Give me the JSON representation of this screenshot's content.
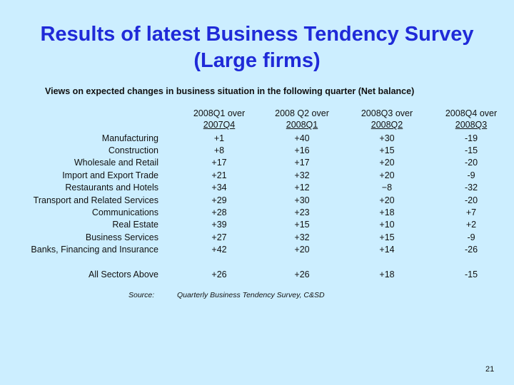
{
  "title": {
    "line1": "Results of latest Business Tendency Survey",
    "line2": "(Large firms)"
  },
  "subtitle": "Views on expected changes in business situation in the following quarter (Net balance)",
  "columns": [
    {
      "line1": "2008Q1 over",
      "line2": "2007Q4"
    },
    {
      "line1": "2008 Q2 over",
      "line2": "2008Q1"
    },
    {
      "line1": "2008Q3 over",
      "line2": "2008Q2"
    },
    {
      "line1": "2008Q4 over",
      "line2": "2008Q3"
    }
  ],
  "rows": [
    {
      "label": "Manufacturing",
      "values": [
        "+1",
        "+40",
        "+30",
        "-19"
      ]
    },
    {
      "label": "Construction",
      "values": [
        "+8",
        "+16",
        "+15",
        "-15"
      ]
    },
    {
      "label": "Wholesale and Retail",
      "values": [
        "+17",
        "+17",
        "+20",
        "-20"
      ]
    },
    {
      "label": "Import and Export Trade",
      "values": [
        "+21",
        "+32",
        "+20",
        "-9"
      ]
    },
    {
      "label": "Restaurants and Hotels",
      "values": [
        "+34",
        "+12",
        "−8",
        "-32"
      ]
    },
    {
      "label": "Transport and Related Services",
      "values": [
        "+29",
        "+30",
        "+20",
        "-20"
      ]
    },
    {
      "label": "Communications",
      "values": [
        "+28",
        "+23",
        "+18",
        "+7"
      ]
    },
    {
      "label": "Real Estate",
      "values": [
        "+39",
        "+15",
        "+10",
        "+2"
      ]
    },
    {
      "label": "Business Services",
      "values": [
        "+27",
        "+32",
        "+15",
        "-9"
      ]
    },
    {
      "label": "Banks, Financing and Insurance",
      "values": [
        "+42",
        "+20",
        "+14",
        "-26"
      ]
    }
  ],
  "total": {
    "label": "All Sectors Above",
    "values": [
      "+26",
      "+26",
      "+18",
      "-15"
    ]
  },
  "source": {
    "label": "Source:",
    "text": "Quarterly Business Tendency Survey, C&SD"
  },
  "page_number": "21"
}
